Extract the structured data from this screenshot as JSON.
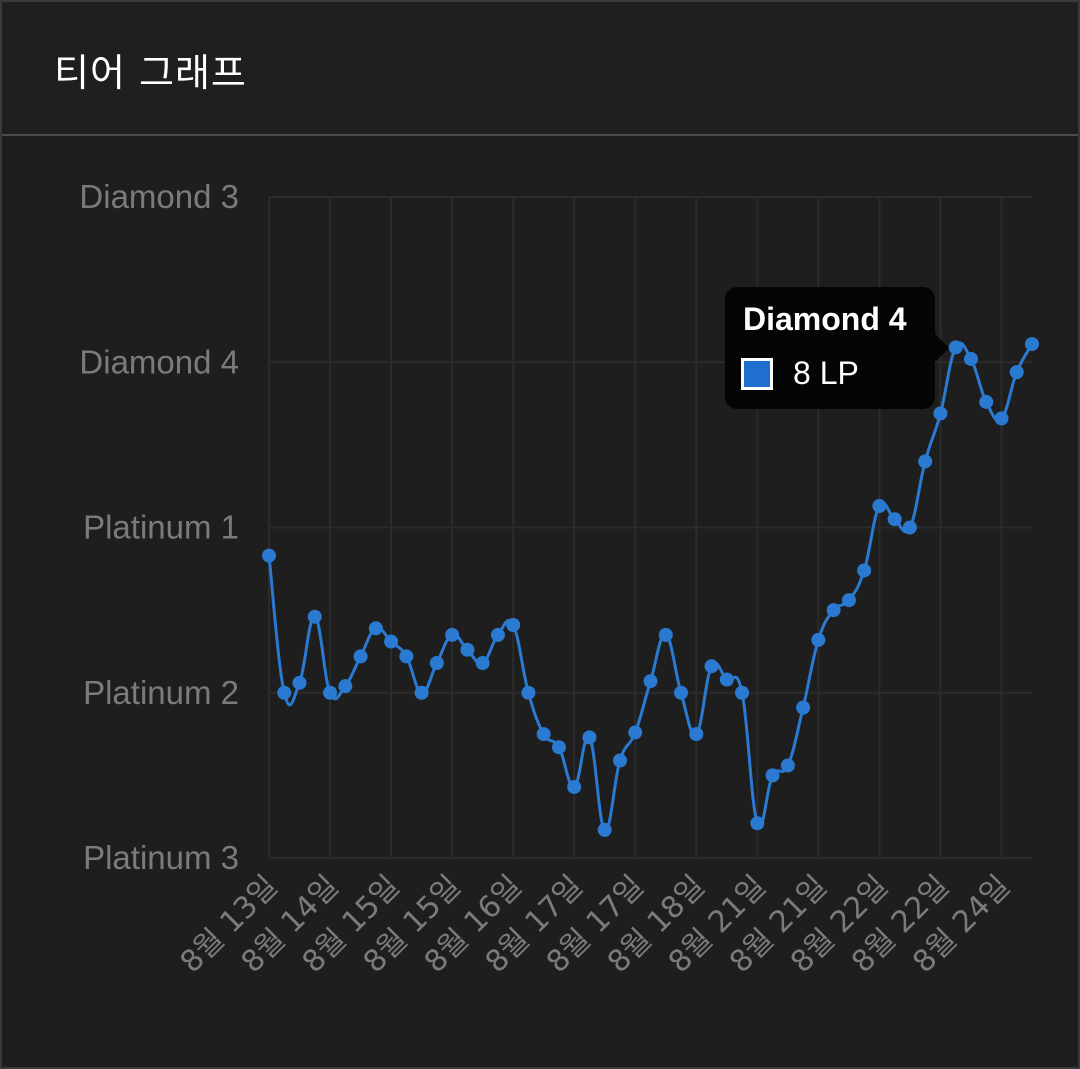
{
  "header": {
    "title": "티어 그래프"
  },
  "colors": {
    "line": "#2a7ad2",
    "grid": "#2b2b2b",
    "tick": "#7b7b7b",
    "background": "#1e1e1e"
  },
  "tooltip": {
    "title": "Diamond 4",
    "value": "8 LP"
  },
  "chart_data": {
    "type": "line",
    "title": "",
    "xlabel": "",
    "ylabel": "",
    "y_ticks": [
      "Diamond 3",
      "Diamond 4",
      "Platinum 1",
      "Platinum 2",
      "Platinum 3"
    ],
    "y_ticks_values": [
      400,
      300,
      200,
      100,
      0
    ],
    "ylim": [
      0,
      400
    ],
    "x_tick_labels": [
      "8월 13일",
      "8월 14일",
      "8월 15일",
      "8월 15일",
      "8월 16일",
      "8월 17일",
      "8월 17일",
      "8월 18일",
      "8월 21일",
      "8월 21일",
      "8월 22일",
      "8월 22일",
      "8월 24일"
    ],
    "grid": true,
    "legend": "none",
    "series": [
      {
        "values": [
          183,
          100,
          106,
          146,
          100,
          104,
          122,
          139,
          131,
          122,
          100,
          118,
          135,
          126,
          118,
          135,
          141,
          100,
          75,
          67,
          43,
          73,
          17,
          59,
          76,
          107,
          135,
          100,
          75,
          116,
          108,
          100,
          21,
          50,
          56,
          91,
          132,
          150,
          156,
          174,
          213,
          205,
          200,
          240,
          269,
          309,
          302,
          276,
          266,
          294,
          311
        ]
      }
    ]
  }
}
